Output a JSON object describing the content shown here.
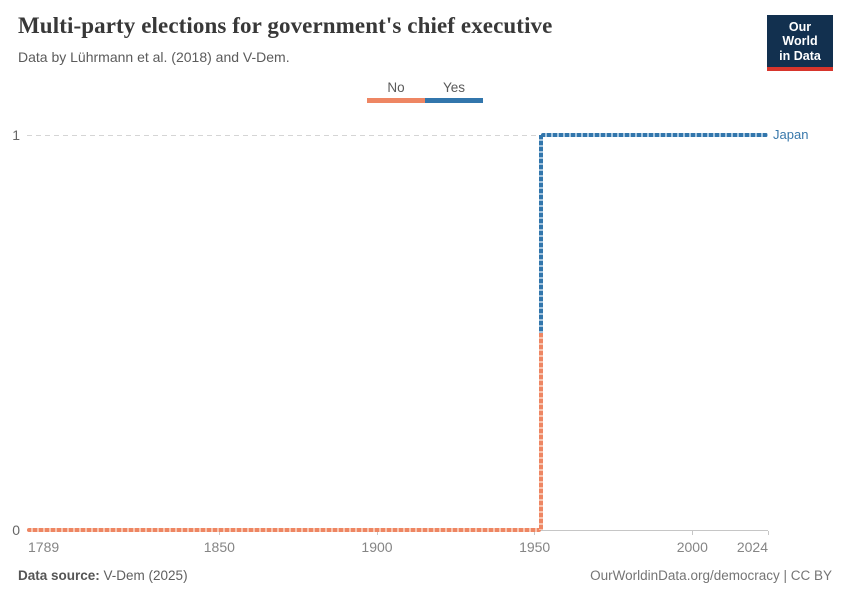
{
  "header": {
    "title": "Multi-party elections for government's chief executive",
    "subtitle": "Data by Lührmann et al. (2018) and V-Dem.",
    "logo": {
      "line1": "Our World",
      "line2": "in Data",
      "bg": "#12304f",
      "accent": "#d7352c"
    }
  },
  "legend": {
    "items": [
      {
        "label": "No",
        "color": "#ee8663"
      },
      {
        "label": "Yes",
        "color": "#3276ac"
      }
    ]
  },
  "chart_data": {
    "type": "line",
    "subtype": "step",
    "title": "Multi-party elections for government's chief executive",
    "entity": "Japan",
    "entity_color": "#3878ab",
    "xlim": [
      1789,
      2024
    ],
    "ylim": [
      0,
      1
    ],
    "xticks": [
      1789,
      1850,
      1900,
      1950,
      2000,
      2024
    ],
    "yticks": [
      0,
      1
    ],
    "step_year": 1952,
    "series": [
      {
        "name": "No",
        "color": "#ee8663",
        "marker_light": "#f8c4ae",
        "x": [
          1789,
          1952
        ],
        "y": [
          0,
          0
        ]
      },
      {
        "name": "Yes",
        "color": "#3276ac",
        "marker_light": "#a3c4de",
        "x": [
          1952,
          2024
        ],
        "y": [
          1,
          1
        ]
      }
    ],
    "grid": "horizontal-dashed-at-1",
    "grid_color": "#d5d5d5",
    "axis_color": "#c6c6c6",
    "legend_position": "top-center"
  },
  "footer": {
    "source_label": "Data source:",
    "source_value": " V-Dem (2025)",
    "credit": "OurWorldinData.org/democracy | CC BY"
  }
}
